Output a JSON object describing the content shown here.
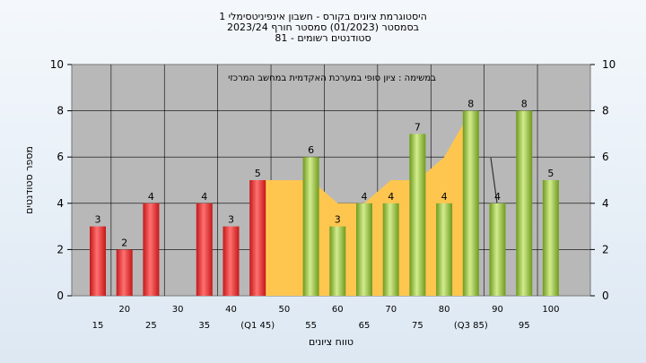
{
  "chart_data": {
    "type": "bar",
    "title_lines": [
      "היסטוגרמת ציונים בקורס - חשבון אינפיניטסימלי 1",
      "בסמסטר  (01/2023)  סמסטר חורף  2023/24",
      "סטודנטים רשומים - 81"
    ],
    "plot_subtitle": "במשימה : ציון סופי במערכת האקדמית במחשב המרכזי",
    "xlabel": "טווח ציונים",
    "ylabel": "מספר סטודנטים",
    "ylim": [
      0,
      10
    ],
    "yticks": [
      0,
      2,
      4,
      6,
      8,
      10
    ],
    "grid": true,
    "categories": [
      "15",
      "20",
      "25",
      "30",
      "35",
      "40",
      "45",
      "50",
      "55",
      "60",
      "65",
      "70",
      "75",
      "80",
      "85",
      "90",
      "95",
      "100"
    ],
    "tick_labels": [
      "15",
      "20",
      "25",
      "30",
      "35",
      "40",
      "(Q1 45)",
      "50",
      "55",
      "60",
      "65",
      "70",
      "75",
      "80",
      "(Q3 85)",
      "90",
      "95",
      "100"
    ],
    "values": [
      3,
      2,
      4,
      0,
      4,
      3,
      5,
      0,
      6,
      3,
      4,
      4,
      7,
      4,
      8,
      4,
      8,
      5
    ],
    "value_labels": [
      "3",
      "2",
      "4",
      "",
      "4",
      "3",
      "5",
      "",
      "6",
      "3",
      "4",
      "4",
      "7",
      "4",
      "8",
      "4",
      "8",
      "5"
    ],
    "bar_colors": [
      "red",
      "red",
      "red",
      "red",
      "red",
      "red",
      "red",
      "red",
      "green",
      "green",
      "green",
      "green",
      "green",
      "green",
      "green",
      "green",
      "green",
      "green"
    ],
    "area": {
      "x_from": 45,
      "x_to": 85,
      "values": [
        5,
        5,
        5,
        4,
        4,
        5,
        5,
        6,
        8
      ],
      "color": "#ffc64f"
    },
    "colors": {
      "red_light": "#ff7070",
      "red_dark": "#c41818",
      "green_light": "#d2ec8e",
      "green_dark": "#6f9a1e",
      "plot_bg": "#b8b8b8",
      "area": "#ffc64f"
    }
  }
}
